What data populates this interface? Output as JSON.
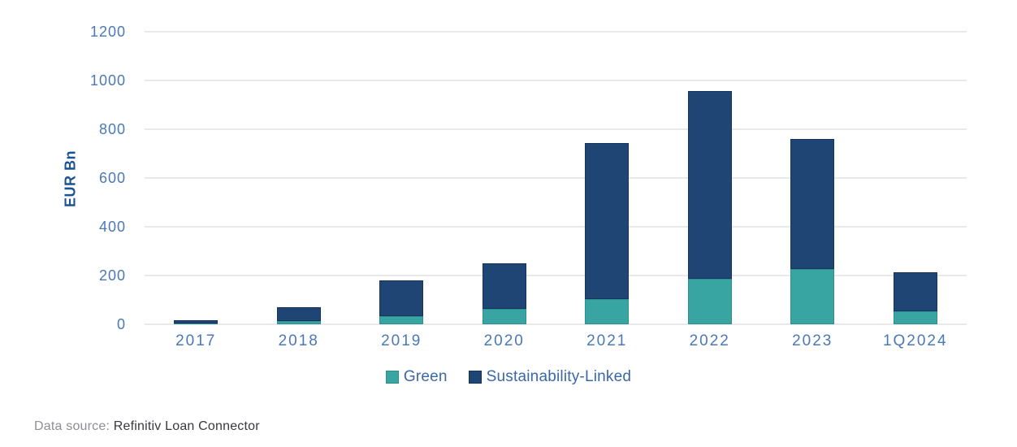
{
  "chart_data": {
    "type": "bar",
    "stacked": true,
    "title": "",
    "xlabel": "",
    "ylabel": "EUR Bn",
    "ylim": [
      0,
      1200
    ],
    "yticks": [
      0,
      200,
      400,
      600,
      800,
      1000,
      1200
    ],
    "grid": true,
    "legend_position": "bottom",
    "categories": [
      "2017",
      "2018",
      "2019",
      "2020",
      "2021",
      "2022",
      "2023",
      "1Q2024"
    ],
    "series": [
      {
        "name": "Green",
        "color": "#38a5a3",
        "border": "#2e8f8f",
        "values": [
          4,
          15,
          35,
          65,
          105,
          187,
          227,
          53
        ]
      },
      {
        "name": "Sustainability-Linked",
        "color": "#1f4575",
        "border": "#17345c",
        "values": [
          12,
          55,
          145,
          185,
          640,
          770,
          533,
          160
        ]
      }
    ]
  },
  "footer": {
    "data_source_label": "Data source: ",
    "data_source_value": "Refinitiv Loan Connector"
  },
  "colors": {
    "background": "#ffffff",
    "gridline": "#e9e9e9",
    "axis_text": "#4a78b8",
    "axis_title": "#1a5394",
    "legend_text": "#3a67a8",
    "footer_label": "#8e8e96",
    "footer_value": "#38383e"
  }
}
